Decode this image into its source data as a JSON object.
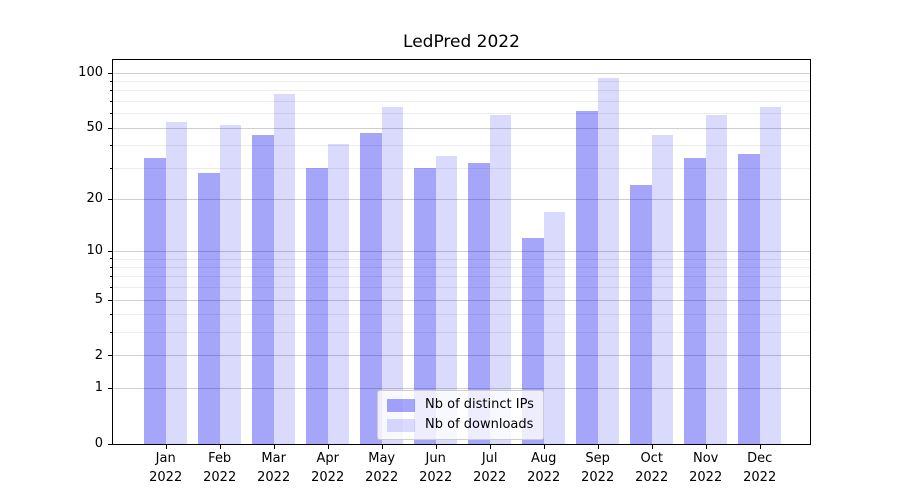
{
  "chart_data": {
    "type": "bar",
    "title": "LedPred 2022",
    "categories": [
      {
        "month": "Jan",
        "year": "2022"
      },
      {
        "month": "Feb",
        "year": "2022"
      },
      {
        "month": "Mar",
        "year": "2022"
      },
      {
        "month": "Apr",
        "year": "2022"
      },
      {
        "month": "May",
        "year": "2022"
      },
      {
        "month": "Jun",
        "year": "2022"
      },
      {
        "month": "Jul",
        "year": "2022"
      },
      {
        "month": "Aug",
        "year": "2022"
      },
      {
        "month": "Sep",
        "year": "2022"
      },
      {
        "month": "Oct",
        "year": "2022"
      },
      {
        "month": "Nov",
        "year": "2022"
      },
      {
        "month": "Dec",
        "year": "2022"
      }
    ],
    "series": [
      {
        "name": "Nb of distinct IPs",
        "values": [
          34,
          28,
          46,
          30,
          47,
          30,
          32,
          12,
          62,
          24,
          34,
          36
        ]
      },
      {
        "name": "Nb of downloads",
        "values": [
          54,
          52,
          77,
          41,
          65,
          35,
          59,
          17,
          94,
          46,
          59,
          65
        ]
      }
    ],
    "xlabel": "",
    "ylabel": "",
    "y_axis": {
      "scale": "symlog (y = ln(1+v))",
      "major_ticks": [
        0,
        1,
        2,
        5,
        10,
        20,
        50,
        100
      ],
      "minor_ticks": [
        3,
        4,
        6,
        7,
        8,
        9,
        30,
        40,
        60,
        70,
        80,
        90
      ],
      "min": 0,
      "max": 118
    },
    "grid": "both",
    "legend_position": "lower center"
  },
  "colors": {
    "ips_bar": "rgba(5,5,240,0.36)",
    "downloads_bar": "rgba(5,5,240,0.15)",
    "grid_major": "#cfcfcf",
    "grid_minor": "#ececec",
    "axis": "#000000",
    "legend_bg": "rgba(255,255,255,0.8)",
    "legend_border": "#cccccc",
    "text": "#000000"
  }
}
